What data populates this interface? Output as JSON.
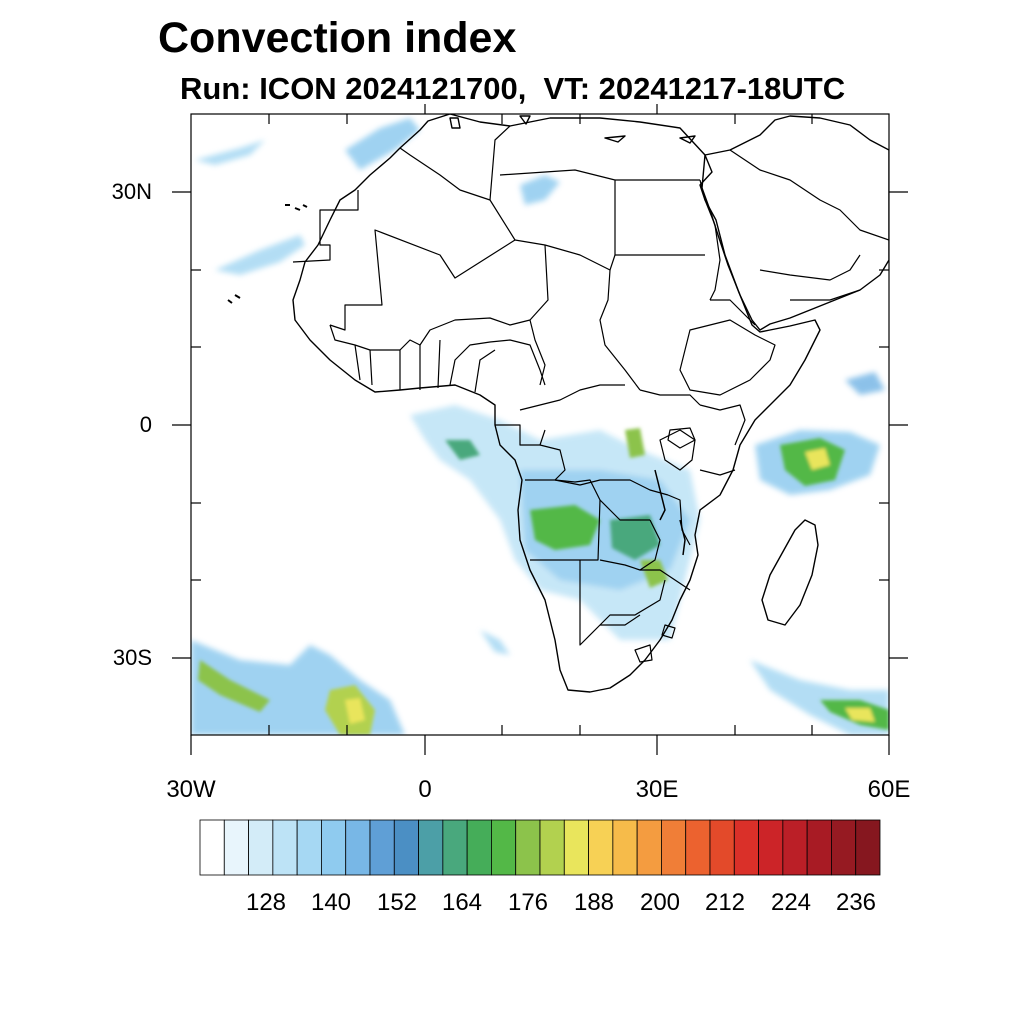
{
  "title": "Convection index",
  "subtitle": "Run: ICON 2024121700,  VT: 20241217-18UTC",
  "map": {
    "lat_labels": [
      "30N",
      "0",
      "30S"
    ],
    "lon_labels": [
      "30W",
      "0",
      "30E",
      "60E"
    ],
    "extent": {
      "lon_min": -30,
      "lon_max": 60,
      "lat_min": -40,
      "lat_max": 40
    }
  },
  "colorbar": {
    "labels": [
      "128",
      "140",
      "152",
      "164",
      "176",
      "188",
      "200",
      "212",
      "224",
      "236"
    ],
    "colors": [
      "#ffffff",
      "#e8f5fc",
      "#d3ecf8",
      "#bde3f6",
      "#a6d8f3",
      "#8fcbef",
      "#78b7e6",
      "#5f9fd6",
      "#4b8fc4",
      "#4c9fa7",
      "#49a87d",
      "#45ad59",
      "#53b847",
      "#8cc34b",
      "#b2d14f",
      "#e9e55c",
      "#f7d155",
      "#f6bb4a",
      "#f49c40",
      "#f07e37",
      "#ec622f",
      "#e34a2a",
      "#da3029",
      "#cc2428",
      "#bb1f27",
      "#a81b24",
      "#961a22",
      "#86171f"
    ]
  }
}
